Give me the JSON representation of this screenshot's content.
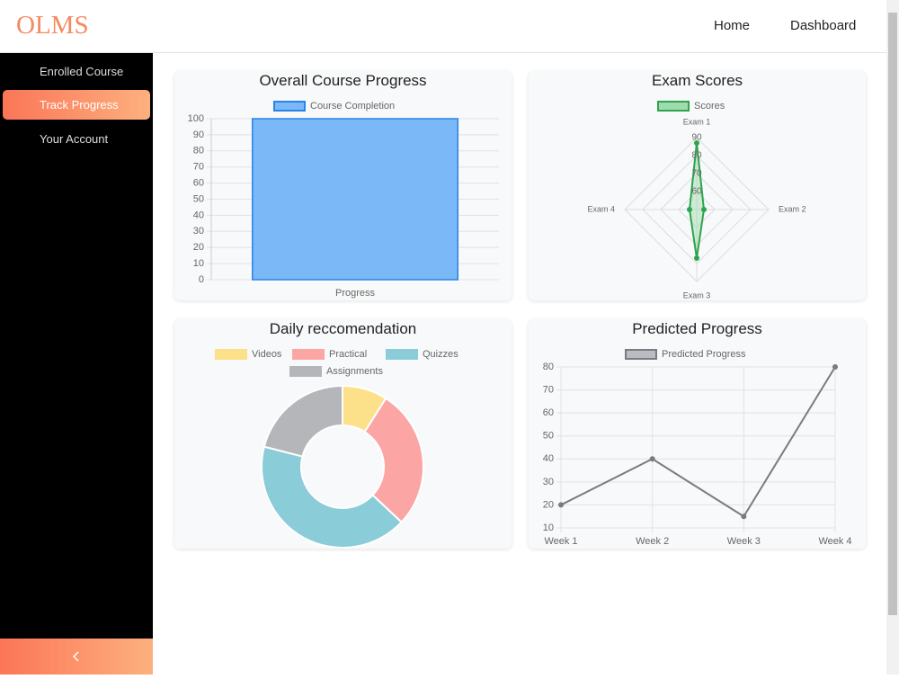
{
  "header": {
    "brand": "OLMS",
    "nav": [
      "Home",
      "Dashboard"
    ]
  },
  "sidebar": {
    "items": [
      "Enrolled Course",
      "Track Progress",
      "Your Account"
    ],
    "active": 1
  },
  "chart_data": [
    {
      "type": "bar",
      "title": "Overall Course Progress",
      "categories": [
        "Progress"
      ],
      "series": [
        {
          "name": "Course Completion",
          "color": "#7ab8f8",
          "border": "#2a84e8",
          "values": [
            100
          ]
        }
      ],
      "ylim": [
        0,
        100
      ],
      "yticks": [
        0,
        10,
        20,
        30,
        40,
        50,
        60,
        70,
        80,
        90,
        100
      ],
      "grid": true
    },
    {
      "type": "radar",
      "title": "Exam Scores",
      "categories": [
        "Exam 1",
        "Exam 2",
        "Exam 3",
        "Exam 4"
      ],
      "series": [
        {
          "name": "Scores",
          "color": "#2da44e",
          "fill": "#9fdcad",
          "values": [
            87,
            54,
            77,
            54
          ]
        }
      ],
      "rlim": [
        50,
        90
      ],
      "rticks": [
        60,
        70,
        80,
        90
      ]
    },
    {
      "type": "doughnut",
      "title": "Daily reccomendation",
      "categories": [
        "Videos",
        "Practical",
        "Quizzes",
        "Assignments"
      ],
      "values": [
        9,
        28,
        42,
        21
      ],
      "colors": [
        "#fde08a",
        "#fca5a5",
        "#8accd8",
        "#b4b6ba"
      ]
    },
    {
      "type": "line",
      "title": "Predicted Progress",
      "categories": [
        "Week 1",
        "Week 2",
        "Week 3",
        "Week 4"
      ],
      "series": [
        {
          "name": "Predicted Progress",
          "color": "#7a7a80",
          "fill": "#b9bcc2",
          "values": [
            20,
            40,
            15,
            80
          ]
        }
      ],
      "ylim": [
        10,
        80
      ],
      "yticks": [
        10,
        20,
        30,
        40,
        50,
        60,
        70,
        80
      ],
      "grid": true
    }
  ]
}
